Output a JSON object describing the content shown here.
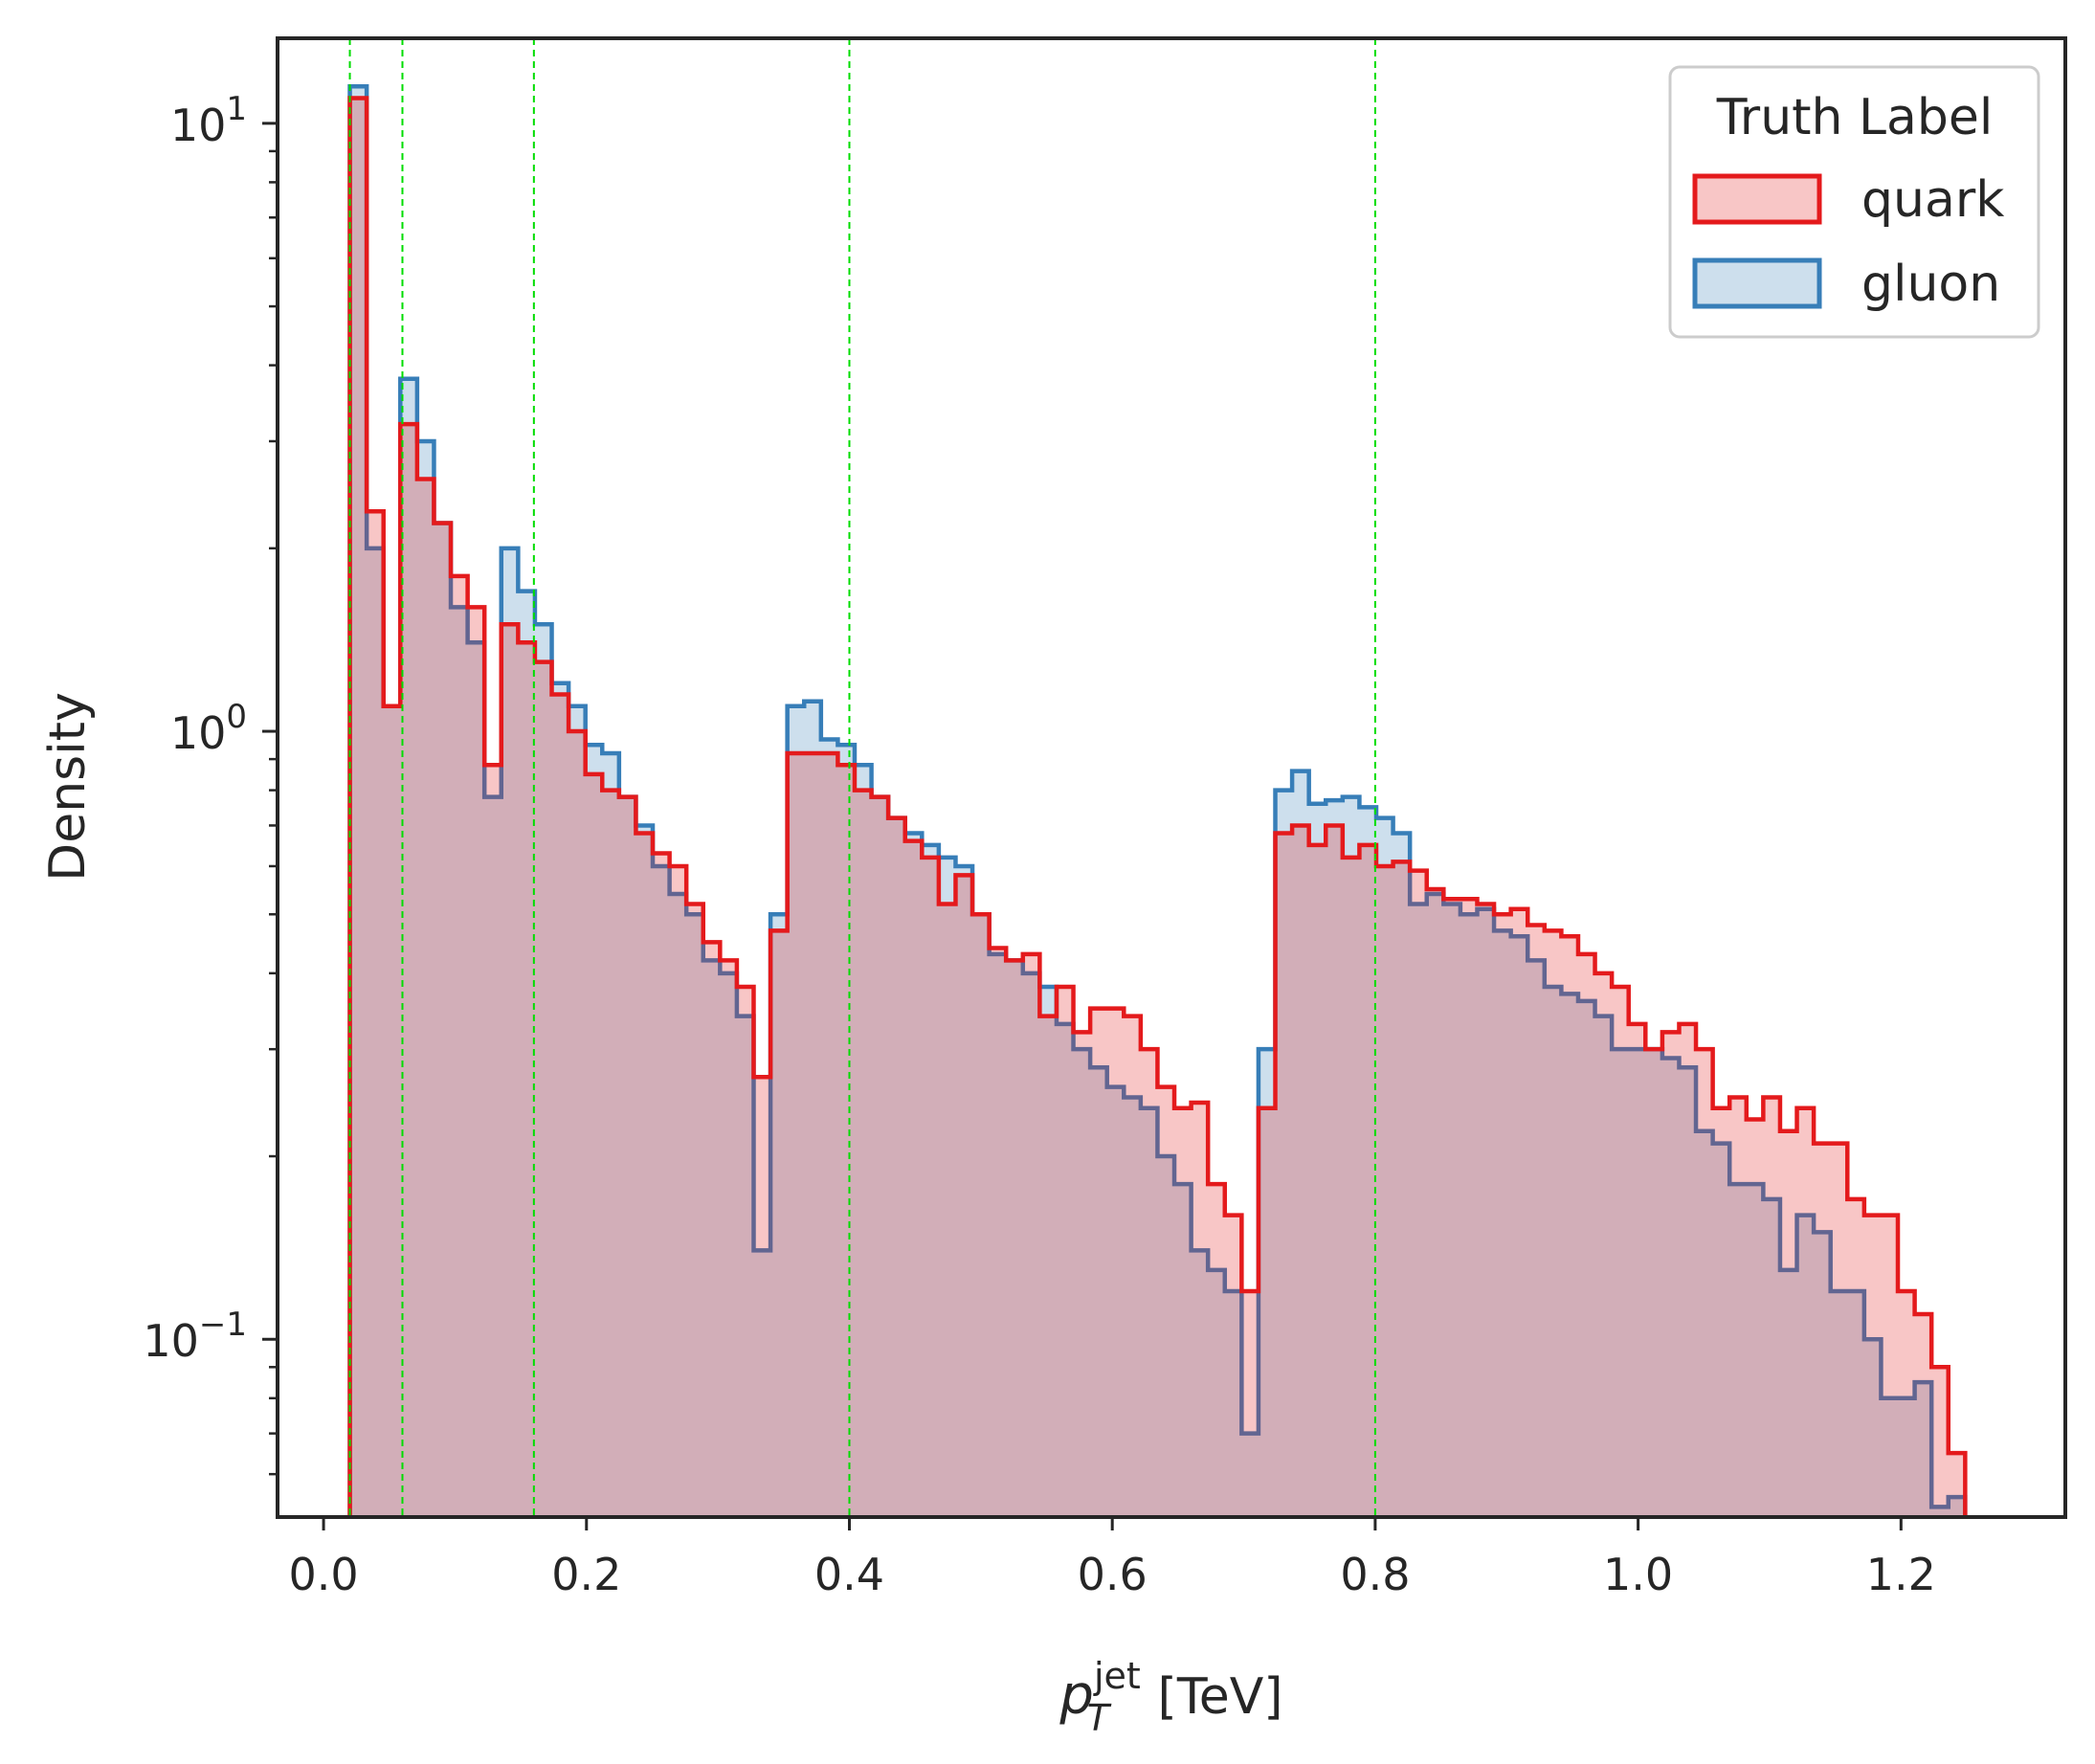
{
  "chart_data": {
    "type": "histogram",
    "title": "",
    "xlabel": "p_T^jet [TeV]",
    "xlabel_parts": {
      "base": "p",
      "sup": "jet",
      "sub": "T",
      "unit": " [TeV]"
    },
    "ylabel": "Density",
    "xlim": [
      -0.035,
      1.325
    ],
    "ylim": [
      0.051,
      13.8
    ],
    "yscale": "log",
    "x_ticks": [
      0.0,
      0.2,
      0.4,
      0.6,
      0.8,
      1.0,
      1.2
    ],
    "x_tick_labels": [
      "0.0",
      "0.2",
      "0.4",
      "0.6",
      "0.8",
      "1.0",
      "1.2"
    ],
    "y_ticks": [
      0.1,
      1,
      10
    ],
    "y_tick_labels": [
      {
        "base": "10",
        "exp": "−1"
      },
      {
        "base": "10",
        "exp": "0"
      },
      {
        "base": "10",
        "exp": "1"
      }
    ],
    "grid": false,
    "vertical_lines": [
      0.02,
      0.06,
      0.16,
      0.4,
      0.8
    ],
    "vertical_line_color": "#00dd00",
    "bin_start": 0.02,
    "bin_width": 0.0128,
    "legend": {
      "title": "Truth Label",
      "position": "top-right"
    },
    "series": [
      {
        "name": "quark",
        "line_color": "#e41a1c",
        "fill_color": "#e41a1c",
        "values": [
          11.0,
          2.3,
          1.1,
          3.2,
          2.6,
          2.2,
          1.8,
          1.6,
          0.88,
          1.5,
          1.4,
          1.3,
          1.15,
          1.0,
          0.85,
          0.8,
          0.78,
          0.68,
          0.63,
          0.6,
          0.52,
          0.45,
          0.42,
          0.38,
          0.27,
          0.47,
          0.92,
          0.92,
          0.92,
          0.88,
          0.8,
          0.78,
          0.72,
          0.66,
          0.62,
          0.52,
          0.58,
          0.5,
          0.44,
          0.42,
          0.43,
          0.34,
          0.38,
          0.32,
          0.35,
          0.35,
          0.34,
          0.3,
          0.26,
          0.24,
          0.245,
          0.18,
          0.16,
          0.12,
          0.24,
          0.68,
          0.7,
          0.65,
          0.7,
          0.62,
          0.65,
          0.6,
          0.61,
          0.59,
          0.55,
          0.53,
          0.53,
          0.52,
          0.5,
          0.51,
          0.48,
          0.47,
          0.46,
          0.43,
          0.4,
          0.38,
          0.33,
          0.3,
          0.32,
          0.33,
          0.3,
          0.24,
          0.25,
          0.23,
          0.25,
          0.22,
          0.24,
          0.21,
          0.21,
          0.17,
          0.16,
          0.16,
          0.12,
          0.11,
          0.09,
          0.065
        ]
      },
      {
        "name": "gluon",
        "line_color": "#377eb8",
        "fill_color": "#377eb8",
        "values": [
          11.5,
          2.0,
          1.1,
          3.8,
          3.0,
          2.2,
          1.6,
          1.4,
          0.78,
          2.0,
          1.7,
          1.5,
          1.2,
          1.1,
          0.95,
          0.92,
          0.78,
          0.7,
          0.6,
          0.54,
          0.5,
          0.42,
          0.4,
          0.34,
          0.14,
          0.5,
          1.1,
          1.12,
          0.97,
          0.95,
          0.88,
          0.78,
          0.72,
          0.68,
          0.65,
          0.62,
          0.6,
          0.5,
          0.43,
          0.42,
          0.4,
          0.38,
          0.33,
          0.3,
          0.28,
          0.26,
          0.25,
          0.24,
          0.2,
          0.18,
          0.14,
          0.13,
          0.12,
          0.07,
          0.3,
          0.8,
          0.86,
          0.76,
          0.77,
          0.78,
          0.75,
          0.72,
          0.68,
          0.52,
          0.54,
          0.52,
          0.5,
          0.51,
          0.47,
          0.46,
          0.42,
          0.38,
          0.37,
          0.36,
          0.34,
          0.3,
          0.3,
          0.3,
          0.29,
          0.28,
          0.22,
          0.21,
          0.18,
          0.18,
          0.17,
          0.13,
          0.16,
          0.15,
          0.12,
          0.12,
          0.1,
          0.08,
          0.08,
          0.085,
          0.053,
          0.055
        ]
      }
    ]
  }
}
